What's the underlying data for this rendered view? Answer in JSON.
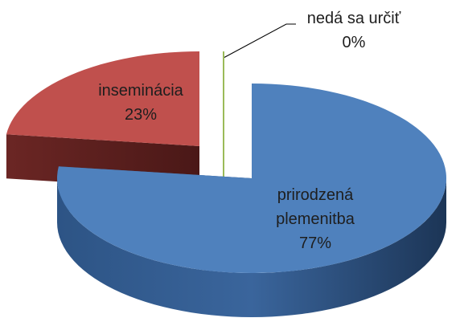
{
  "chart_data": {
    "type": "pie",
    "categories": [
      "prirodzená plemenitba",
      "inseminácia",
      "nedá sa určiť"
    ],
    "values": [
      77,
      23,
      0
    ],
    "value_labels": [
      "77%",
      "23%",
      "0%"
    ],
    "colors": [
      "#4f81bd",
      "#c0504d",
      "#9bbb59"
    ]
  }
}
